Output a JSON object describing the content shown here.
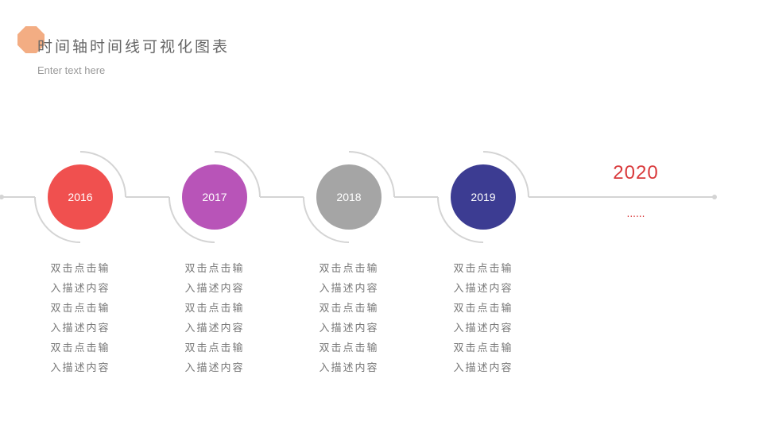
{
  "header": {
    "title": "时间轴时间线可视化图表",
    "subtitle": "Enter text here"
  },
  "timeline": {
    "items": [
      {
        "year": "2016",
        "color": "#f0504f",
        "lines": [
          "双击点击输",
          "入描述内容",
          "双击点击输",
          "入描述内容",
          "双击点击输",
          "入描述内容"
        ]
      },
      {
        "year": "2017",
        "color": "#b854b8",
        "lines": [
          "双击点击输",
          "入描述内容",
          "双击点击输",
          "入描述内容",
          "双击点击输",
          "入描述内容"
        ]
      },
      {
        "year": "2018",
        "color": "#a5a5a5",
        "lines": [
          "双击点击输",
          "入描述内容",
          "双击点击输",
          "入描述内容",
          "双击点击输",
          "入描述内容"
        ]
      },
      {
        "year": "2019",
        "color": "#3c3c92",
        "lines": [
          "双击点击输",
          "入描述内容",
          "双击点击输",
          "入描述内容",
          "双击点击输",
          "入描述内容"
        ]
      }
    ],
    "final": {
      "year": "2020",
      "text": "......",
      "color": "#d9393b"
    },
    "line_color": "#d4d4d4"
  }
}
